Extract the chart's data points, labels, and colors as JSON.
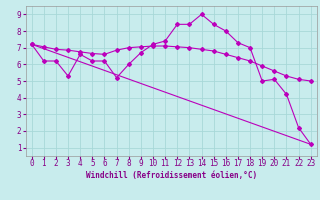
{
  "line1_x": [
    0,
    1,
    2,
    3,
    4,
    5,
    6,
    7,
    8,
    9,
    10,
    11,
    12,
    13,
    14,
    15,
    16,
    17,
    18,
    19,
    20,
    21,
    22,
    23
  ],
  "line1_y": [
    7.2,
    6.2,
    6.2,
    5.3,
    6.6,
    6.2,
    6.2,
    5.2,
    6.0,
    6.7,
    7.2,
    7.4,
    8.4,
    8.4,
    9.0,
    8.4,
    8.0,
    7.3,
    7.0,
    5.0,
    5.1,
    4.2,
    2.2,
    1.2
  ],
  "line2_x": [
    0,
    1,
    2,
    3,
    4,
    5,
    6,
    7,
    8,
    9,
    10,
    11,
    12,
    13,
    14,
    15,
    16,
    17,
    18,
    19,
    20,
    21,
    22,
    23
  ],
  "line2_y": [
    7.2,
    7.05,
    6.9,
    6.85,
    6.75,
    6.65,
    6.6,
    6.85,
    7.0,
    7.05,
    7.1,
    7.1,
    7.05,
    7.0,
    6.9,
    6.8,
    6.6,
    6.4,
    6.2,
    5.9,
    5.6,
    5.3,
    5.1,
    5.0
  ],
  "line3_x": [
    0,
    23
  ],
  "line3_y": [
    7.2,
    1.2
  ],
  "line_color": "#bb00bb",
  "bg_color": "#c8eced",
  "grid_color": "#a8d8d8",
  "xlabel": "Windchill (Refroidissement éolien,°C)",
  "ylabel": "",
  "xlim": [
    -0.5,
    23.5
  ],
  "ylim": [
    0.5,
    9.5
  ],
  "xticks": [
    0,
    1,
    2,
    3,
    4,
    5,
    6,
    7,
    8,
    9,
    10,
    11,
    12,
    13,
    14,
    15,
    16,
    17,
    18,
    19,
    20,
    21,
    22,
    23
  ],
  "yticks": [
    1,
    2,
    3,
    4,
    5,
    6,
    7,
    8,
    9
  ],
  "marker": "D",
  "markersize": 2.0,
  "linewidth": 0.8,
  "xlabel_fontsize": 5.5,
  "tick_fontsize": 5.5,
  "label_color": "#880088"
}
